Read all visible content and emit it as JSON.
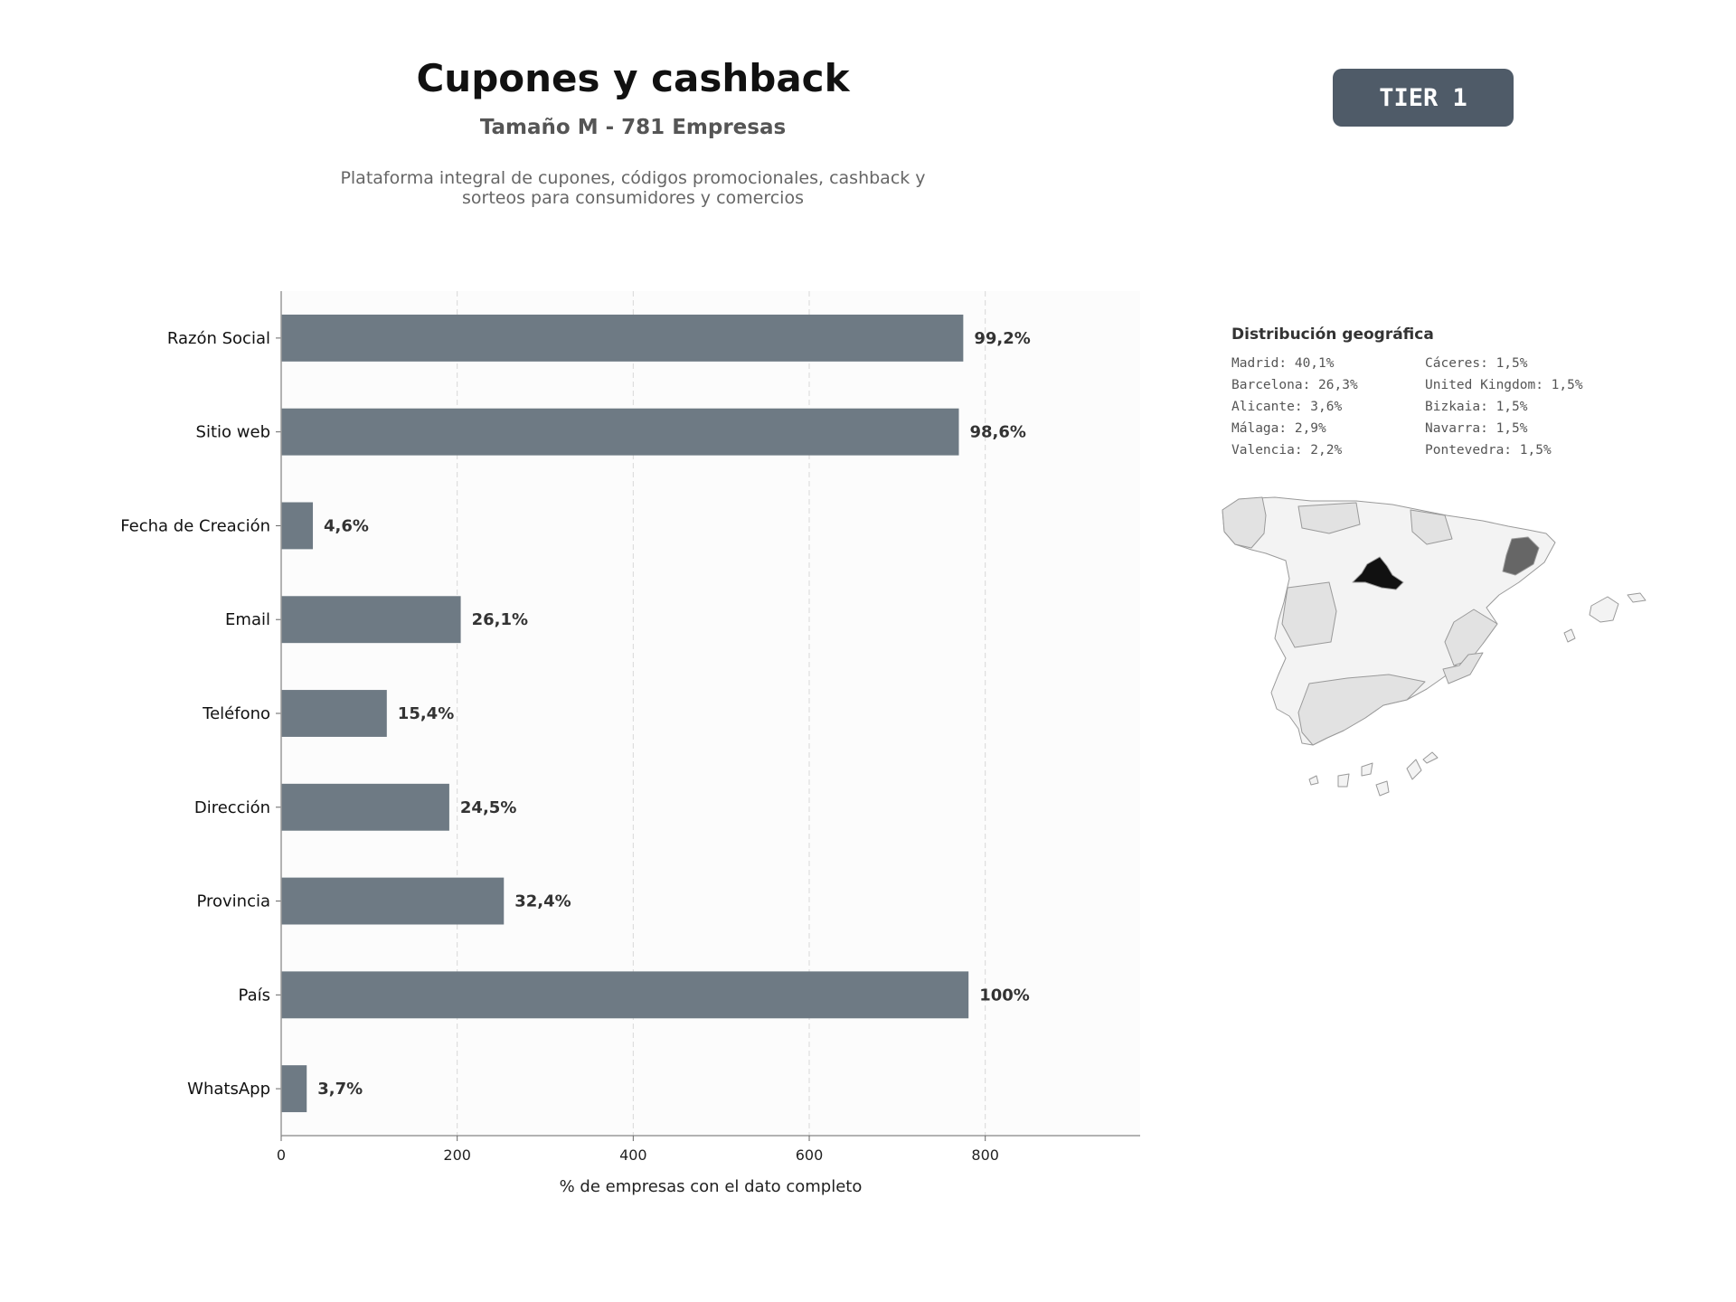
{
  "header": {
    "title": "Cupones y cashback",
    "subtitle": "Tamaño M - 781 Empresas",
    "description_line1": "Plataforma integral de cupones, códigos promocionales, cashback y",
    "description_line2": "sorteos para consumidores y comercios",
    "tier_label": "TIER 1"
  },
  "colors": {
    "bar": "#6e7a84",
    "badge": "#4f5b68",
    "map_highlight": "#111111",
    "map_secondary": "#666666",
    "map_light": "#e2e2e2",
    "map_lightest": "#f3f3f3"
  },
  "chart_data": {
    "type": "bar",
    "orientation": "horizontal",
    "categories": [
      "Razón Social",
      "Sitio web",
      "Fecha de Creación",
      "Email",
      "Teléfono",
      "Dirección",
      "Provincia",
      "País",
      "WhatsApp"
    ],
    "values": [
      775,
      770,
      36,
      204,
      120,
      191,
      253,
      781,
      29
    ],
    "data_labels": [
      "99,2%",
      "98,6%",
      "4,6%",
      "26,1%",
      "15,4%",
      "24,5%",
      "32,4%",
      "100%",
      "3,7%"
    ],
    "xlabel": "% de empresas con el dato completo",
    "ylabel": "",
    "xlim": [
      0,
      976
    ],
    "xticks": [
      0,
      200,
      400,
      600,
      800
    ],
    "grid": "vertical dashed"
  },
  "geo": {
    "title": "Distribución geográfica",
    "items": [
      "Madrid: 40,1%",
      "Cáceres: 1,5%",
      "Barcelona: 26,3%",
      "United Kingdom: 1,5%",
      "Alicante: 3,6%",
      "Bizkaia: 1,5%",
      "Málaga: 2,9%",
      "Navarra: 1,5%",
      "Valencia: 2,2%",
      "Pontevedra: 1,5%"
    ]
  }
}
